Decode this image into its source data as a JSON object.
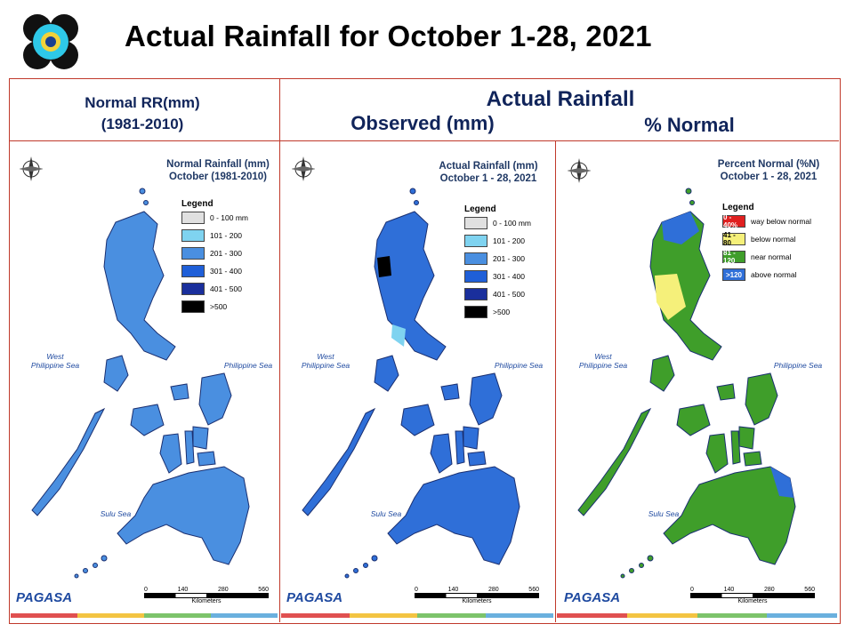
{
  "slide": {
    "title": "Actual Rainfall for October 1-28, 2021"
  },
  "headers": {
    "normal_line1": "Normal RR(mm)",
    "normal_line2": "(1981-2010)",
    "actual": "Actual Rainfall",
    "observed": "Observed (mm)",
    "percent": "% Normal"
  },
  "maps": [
    {
      "title_line1": "Normal Rainfall (mm)",
      "title_line2": "October (1981-2010)",
      "legend_title": "Legend",
      "legend": [
        {
          "label": "0 - 100 mm",
          "color": "#e0e0e0"
        },
        {
          "label": "101 - 200",
          "color": "#7fd3f0"
        },
        {
          "label": "201 - 300",
          "color": "#4a8fe0"
        },
        {
          "label": "301 - 400",
          "color": "#1f5fd8"
        },
        {
          "label": "401 - 500",
          "color": "#1a2f9c"
        },
        {
          "label": ">500",
          "color": "#000000"
        }
      ]
    },
    {
      "title_line1": "Actual Rainfall (mm)",
      "title_line2": "October 1 - 28, 2021",
      "legend_title": "Legend",
      "legend": [
        {
          "label": "0 - 100 mm",
          "color": "#e0e0e0"
        },
        {
          "label": "101 - 200",
          "color": "#7fd3f0"
        },
        {
          "label": "201 - 300",
          "color": "#4a8fe0"
        },
        {
          "label": "301 - 400",
          "color": "#1f5fd8"
        },
        {
          "label": "401 - 500",
          "color": "#1a2f9c"
        },
        {
          "label": ">500",
          "color": "#000000"
        }
      ]
    },
    {
      "title_line1": "Percent Normal (%N)",
      "title_line2": "October 1 - 28, 2021",
      "legend_title": "Legend",
      "legend": [
        {
          "box": "0 - 40%",
          "label": "way below normal",
          "color": "#e02020"
        },
        {
          "box": "41 - 80",
          "label": "below normal",
          "color": "#f5f07a"
        },
        {
          "box": "81 - 120",
          "label": "near normal",
          "color": "#3f9e2a"
        },
        {
          "box": ">120",
          "label": "above normal",
          "color": "#2f6fd8"
        }
      ]
    }
  ],
  "seas": {
    "west_line1": "West",
    "west_line2": "Philippine Sea",
    "east": "Philippine Sea",
    "sulu": "Sulu Sea"
  },
  "scale": {
    "ticks": [
      "0",
      "140",
      "280",
      "560"
    ],
    "unit": "Kilometers"
  },
  "branding": {
    "agency": "PAGASA"
  },
  "compass": {
    "n": "N",
    "s": "S"
  },
  "fills": {
    "normal": "#4a8fe0",
    "actual": "#2f6fd8",
    "percent": "#3f9e2a"
  },
  "stripe_colors": [
    "#e05050",
    "#f3c442",
    "#7cc36b",
    "#6ab0de"
  ]
}
